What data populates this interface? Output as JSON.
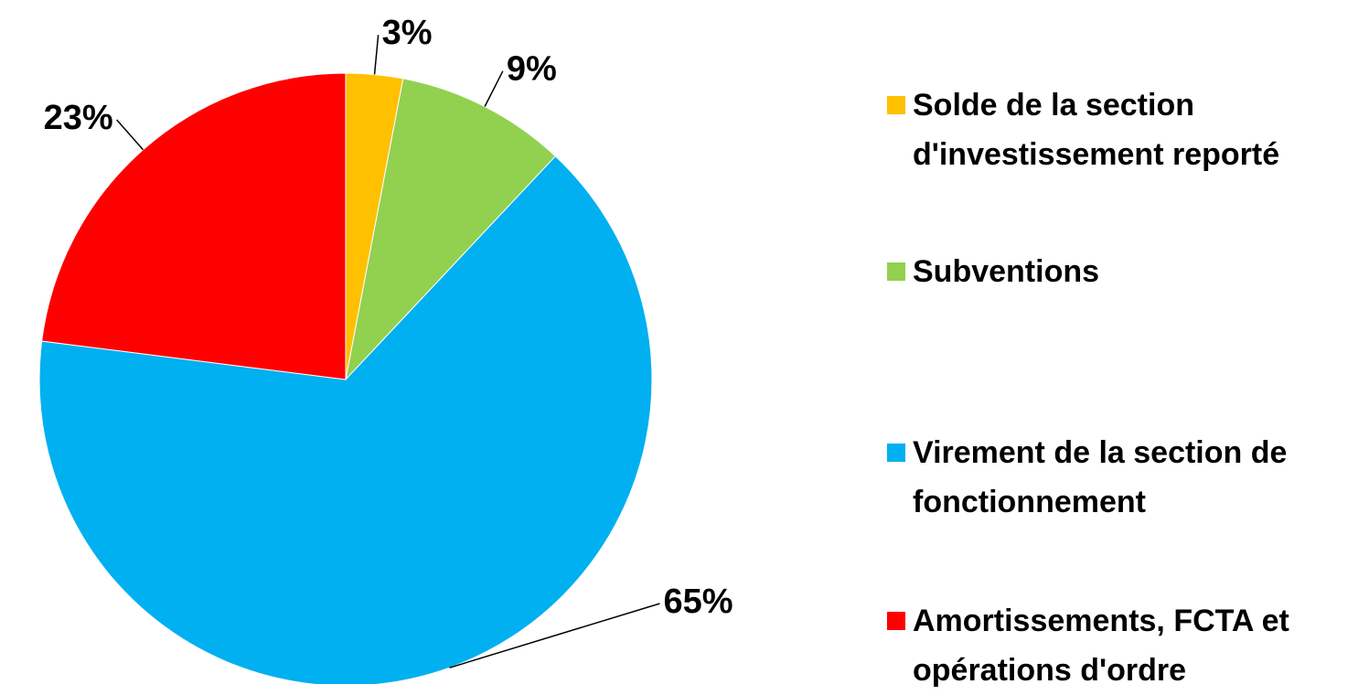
{
  "chart_data": {
    "type": "pie",
    "categories": [
      "Solde de la section d'investissement reporté",
      "Subventions",
      "Virement de la section de fonctionnement",
      "Amortissements, FCTA et opérations d'ordre"
    ],
    "values": [
      3,
      9,
      65,
      23
    ],
    "value_labels": [
      "3%",
      "9%",
      "65%",
      "23%"
    ],
    "colors": [
      "#FFC000",
      "#92D050",
      "#00B0F0",
      "#FF0000"
    ],
    "legend": "right"
  }
}
